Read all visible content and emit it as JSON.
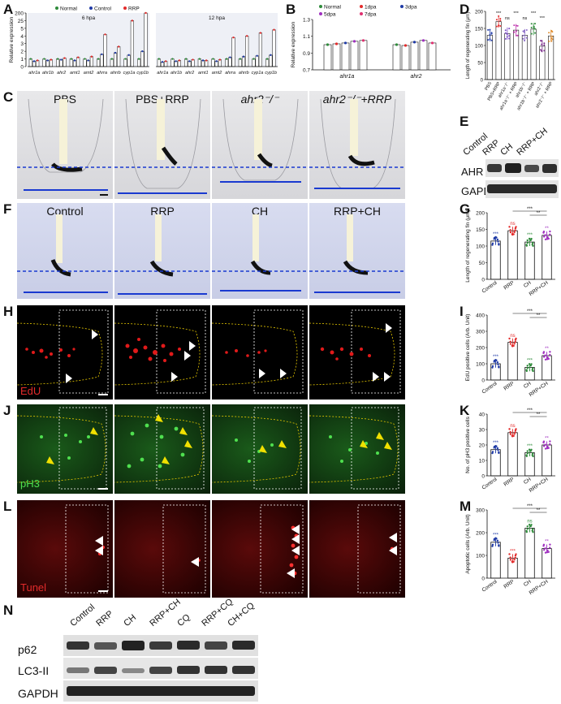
{
  "figure": {
    "labels": [
      "A",
      "B",
      "C",
      "D",
      "E",
      "F",
      "G",
      "H",
      "I",
      "J",
      "K",
      "L",
      "M",
      "N"
    ]
  },
  "panelC": {
    "titles": [
      "PBS",
      "PBS+RRP",
      "ahr2⁻/⁻",
      "ahr2⁻/⁻+RRP"
    ]
  },
  "panelF": {
    "titles": [
      "Control",
      "RRP",
      "CH",
      "RRP+CH"
    ]
  },
  "stains": {
    "H": "EdU",
    "J": "pH3",
    "L": "Tunel"
  },
  "panelE": {
    "lanes": [
      "Control",
      "RRP",
      "CH",
      "RRP+CH"
    ],
    "rows": [
      "AHR",
      "GAPDH"
    ]
  },
  "panelN": {
    "lanes": [
      "Control",
      "RRP",
      "CH",
      "RRP+CH",
      "CQ",
      "RRP+CQ",
      "CH+CQ"
    ],
    "rows": [
      "p62",
      "LC3-II",
      "GAPDH"
    ]
  },
  "chart_data": [
    {
      "panel": "A",
      "type": "bar",
      "ylabel": "Relative expression",
      "ylim": [
        0,
        200
      ],
      "yticks": [
        "0",
        "1",
        "2",
        "3",
        "4",
        "5",
        "25",
        "200"
      ],
      "legend": [
        "Normal",
        "Control",
        "RRP"
      ],
      "subpanels": [
        "6 hpa",
        "12 hpa"
      ],
      "categories": [
        "ahr1a",
        "ahr1b",
        "ahr2",
        "arnt1",
        "arnt2",
        "ahrra",
        "ahrrb",
        "cyp1a",
        "cyp1b"
      ],
      "colors": [
        "#2e8b3a",
        "#1f3aa6",
        "#e32b2b"
      ],
      "series_6hpa": [
        {
          "name": "Normal",
          "values": [
            1,
            1,
            1,
            1,
            1,
            1,
            1,
            1,
            1
          ]
        },
        {
          "name": "Control",
          "values": [
            0.7,
            0.8,
            0.9,
            0.8,
            0.8,
            1.6,
            1.8,
            1.5,
            2.0
          ]
        },
        {
          "name": "RRP",
          "values": [
            0.8,
            0.9,
            1.1,
            1.2,
            1.3,
            4.2,
            2.6,
            25,
            200
          ]
        }
      ],
      "series_12hpa": [
        {
          "name": "Normal",
          "values": [
            1,
            1,
            1,
            1,
            1,
            1,
            1,
            1,
            1
          ]
        },
        {
          "name": "Control",
          "values": [
            0.6,
            0.7,
            0.7,
            0.8,
            0.7,
            1.2,
            1.3,
            1.4,
            1.5
          ]
        },
        {
          "name": "RRP",
          "values": [
            0.7,
            0.8,
            0.9,
            0.8,
            0.9,
            3.8,
            4.0,
            4.4,
            4.8
          ]
        }
      ]
    },
    {
      "panel": "B",
      "type": "bar",
      "ylabel": "Relative expression",
      "ylim": [
        0.7,
        1.3
      ],
      "yticks": [
        "0.7",
        "0.9",
        "1.1",
        "1.3"
      ],
      "categories": [
        "ahr1a",
        "ahr2"
      ],
      "legend": [
        "Normal",
        "1dpa",
        "3dpa",
        "5dpa",
        "7dpa"
      ],
      "colors": [
        "#2e8b3a",
        "#e32b2b",
        "#1f3aa6",
        "#a030c0",
        "#e03070"
      ],
      "series": [
        {
          "name": "Normal",
          "values": [
            1.0,
            1.0
          ]
        },
        {
          "name": "1dpa",
          "values": [
            1.01,
            0.99
          ]
        },
        {
          "name": "3dpa",
          "values": [
            1.02,
            1.03
          ]
        },
        {
          "name": "5dpa",
          "values": [
            1.04,
            1.05
          ]
        },
        {
          "name": "7dpa",
          "values": [
            1.05,
            1.02
          ]
        }
      ]
    },
    {
      "panel": "D",
      "type": "bar",
      "ylabel": "Length of regenerating fin (μm)",
      "ylim": [
        0,
        200
      ],
      "yticks": [
        "0",
        "50",
        "100",
        "150",
        "200"
      ],
      "categories": [
        "PBS",
        "PBS+RRP",
        "ahr1a⁻/⁻",
        "ahr1a⁻/⁻ + RRP",
        "ahr1b⁻/⁻",
        "ahr1b⁻/⁻ + RRP",
        "ahr2⁻/⁻",
        "ahr2⁻/⁻ + RRP"
      ],
      "values": [
        130,
        170,
        135,
        145,
        130,
        148,
        98,
        128
      ],
      "colors": [
        "#1f3aa6",
        "#e32b2b",
        "#7b4ac6",
        "#c03ab0",
        "#8a6ac8",
        "#2e8b3a",
        "#7a2a8a",
        "#e08a2a"
      ],
      "annotations": [
        "***",
        "ns",
        "***",
        "ns",
        "***",
        "***"
      ]
    },
    {
      "panel": "G",
      "type": "bar",
      "ylabel": "Length of regenerating fin (μm)",
      "ylim": [
        0,
        200
      ],
      "yticks": [
        "0",
        "50",
        "100",
        "150",
        "200"
      ],
      "categories": [
        "Control",
        "RRP",
        "CH",
        "RRP+CH"
      ],
      "values": [
        115,
        146,
        112,
        132
      ],
      "colors": [
        "#1f3aa6",
        "#e32b2b",
        "#2e8b3a",
        "#a030c0"
      ],
      "annotations": [
        "***",
        "ns",
        "***",
        "**",
        "***"
      ]
    },
    {
      "panel": "I",
      "type": "bar",
      "ylabel": "EdU positive cells (Arb. Unit)",
      "ylim": [
        0,
        400
      ],
      "yticks": [
        "0",
        "100",
        "200",
        "300",
        "400"
      ],
      "categories": [
        "Control",
        "RRP",
        "CH",
        "RRP+CH"
      ],
      "values": [
        100,
        232,
        78,
        150
      ],
      "colors": [
        "#1f3aa6",
        "#e32b2b",
        "#2e8b3a",
        "#a030c0"
      ],
      "annotations": [
        "***",
        "ns",
        "***",
        "**",
        "***"
      ]
    },
    {
      "panel": "K",
      "type": "bar",
      "ylabel": "No. of pH3 positive cells",
      "ylim": [
        0,
        40
      ],
      "yticks": [
        "0",
        "10",
        "20",
        "30",
        "40"
      ],
      "categories": [
        "Control",
        "RRP",
        "CH",
        "RRP+CH"
      ],
      "values": [
        17,
        28,
        15,
        20
      ],
      "colors": [
        "#1f3aa6",
        "#e32b2b",
        "#2e8b3a",
        "#a030c0"
      ],
      "annotations": [
        "***",
        "ns",
        "***",
        "**",
        "***"
      ]
    },
    {
      "panel": "M",
      "type": "bar",
      "ylabel": "Apoptotic cells (Arb. Unit)",
      "ylim": [
        0,
        300
      ],
      "yticks": [
        "0",
        "100",
        "200",
        "300"
      ],
      "categories": [
        "Control",
        "RRP",
        "CH",
        "RRP+CH"
      ],
      "values": [
        158,
        88,
        220,
        130
      ],
      "colors": [
        "#1f3aa6",
        "#e32b2b",
        "#2e8b3a",
        "#a030c0"
      ],
      "annotations": [
        "***",
        "***",
        "ns",
        "**",
        "***"
      ]
    }
  ]
}
